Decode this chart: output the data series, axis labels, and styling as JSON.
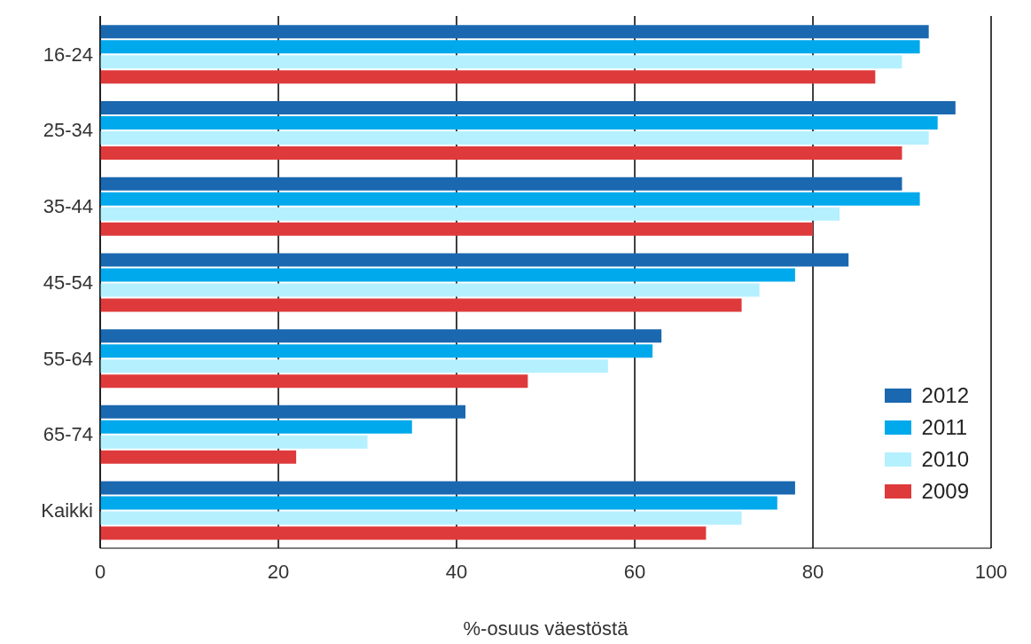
{
  "chart_data": {
    "type": "bar",
    "orientation": "horizontal",
    "xlabel": "%-osuus väestöstä",
    "categories": [
      "16-24",
      "25-34",
      "35-44",
      "45-54",
      "55-64",
      "65-74",
      "Kaikki"
    ],
    "series": [
      {
        "name": "2012",
        "color": "#1a68b0",
        "values": [
          93,
          96,
          90,
          84,
          63,
          41,
          78
        ]
      },
      {
        "name": "2011",
        "color": "#00a9ec",
        "values": [
          92,
          94,
          92,
          78,
          62,
          35,
          76
        ]
      },
      {
        "name": "2010",
        "color": "#b5f0ff",
        "values": [
          90,
          93,
          83,
          74,
          57,
          30,
          72
        ]
      },
      {
        "name": "2009",
        "color": "#de3a3c",
        "values": [
          87,
          90,
          80,
          72,
          48,
          22,
          68
        ]
      }
    ],
    "xlim": [
      0,
      100
    ],
    "xticks": [
      0,
      20,
      40,
      60,
      80,
      100
    ],
    "grid": "x",
    "legend": "bottom right"
  }
}
